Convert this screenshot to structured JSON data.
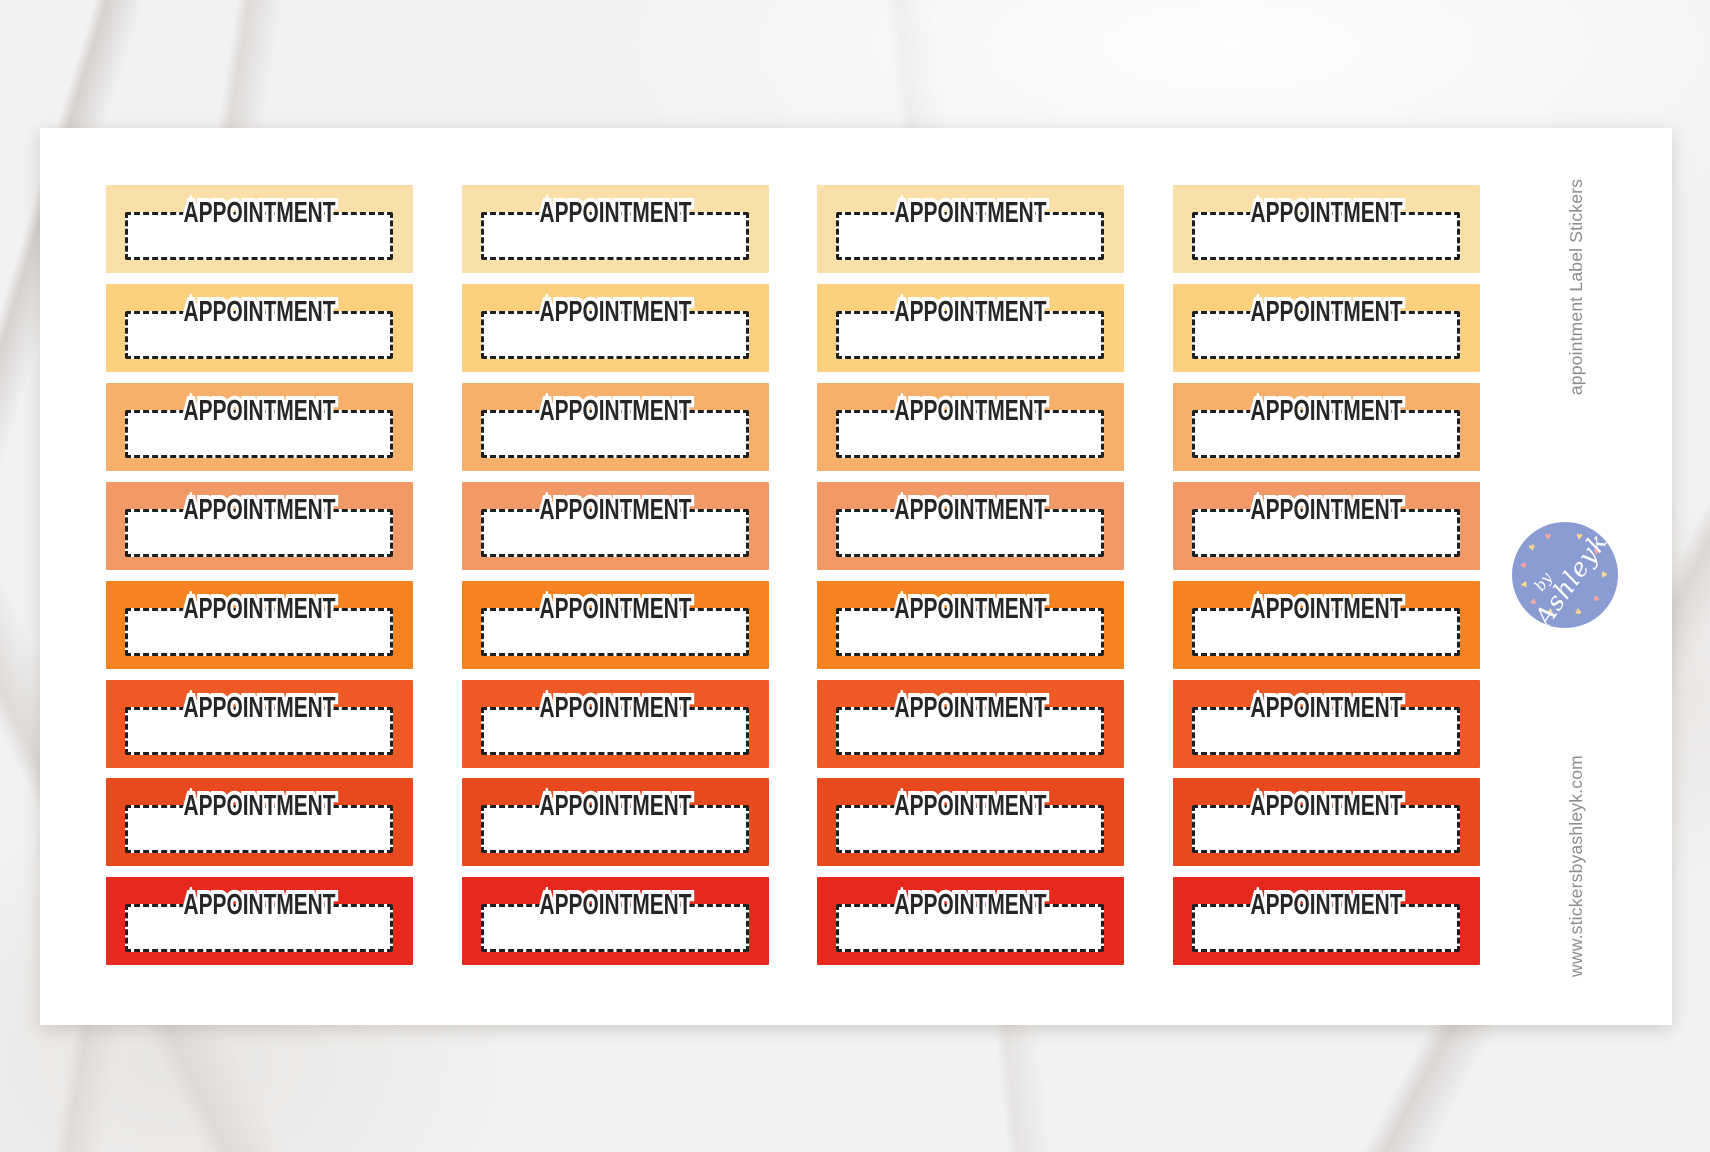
{
  "product": {
    "sticker_label": "APPOINTMENT",
    "columns": 4,
    "row_colors": [
      "#fbdfa8",
      "#fbd17f",
      "#f6b06b",
      "#f19a68",
      "#f58320",
      "#ee5a25",
      "#e9491f",
      "#e7291d"
    ],
    "side_title": "appointment Label Stickers",
    "website": "www.stickersbyashleyk.com",
    "logo": {
      "prefix": "by",
      "name": "Ashleyk",
      "badge_color": "#8b9cd3",
      "heart_colors": [
        "#f6d88f",
        "#f2a79f"
      ]
    }
  }
}
